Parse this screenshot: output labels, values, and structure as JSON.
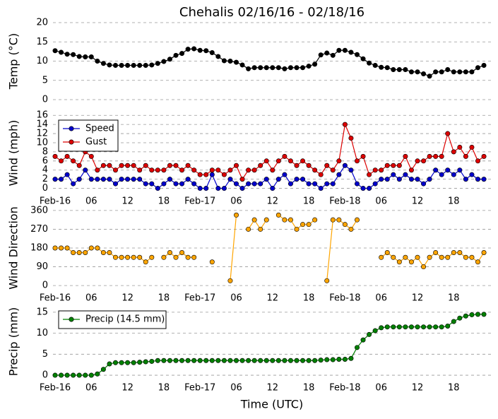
{
  "chart_data": [
    {
      "type": "line",
      "title": "Chehalis 02/16/16 - 02/18/16",
      "y_label": "Temp (°C)",
      "ylim": [
        0,
        20
      ],
      "yticks": [
        0,
        5,
        10,
        15,
        20
      ],
      "grid": true,
      "series": [
        {
          "color": "#000000",
          "values": [
            12.7,
            12.3,
            11.8,
            11.7,
            11.2,
            11.1,
            11.1,
            10.0,
            9.4,
            9.0,
            8.9,
            8.9,
            8.9,
            8.9,
            8.9,
            8.9,
            9.0,
            9.4,
            9.9,
            10.5,
            11.5,
            12.0,
            13.1,
            13.2,
            12.8,
            12.7,
            12.2,
            11.2,
            10.1,
            10.0,
            9.7,
            9.0,
            8.0,
            8.3,
            8.3,
            8.3,
            8.3,
            8.3,
            8.0,
            8.3,
            8.3,
            8.3,
            8.7,
            9.2,
            11.6,
            12.1,
            11.5,
            12.8,
            12.8,
            12.3,
            11.7,
            10.6,
            9.5,
            8.9,
            8.4,
            8.3,
            7.8,
            7.8,
            7.8,
            7.2,
            7.2,
            6.7,
            6.1,
            7.2,
            7.2,
            7.8,
            7.2,
            7.2,
            7.2,
            7.2,
            8.3,
            8.9
          ]
        }
      ]
    },
    {
      "type": "line",
      "y_label": "Wind (mph)",
      "ylim": [
        -1,
        16.5
      ],
      "yticks": [
        0,
        2,
        4,
        6,
        8,
        10,
        12,
        14,
        16
      ],
      "grid": true,
      "legend": "upper left",
      "categories": [
        "Feb-16",
        null,
        null,
        null,
        null,
        null,
        "06",
        null,
        null,
        null,
        null,
        null,
        "12",
        null,
        null,
        null,
        null,
        null,
        "18",
        null,
        null,
        null,
        null,
        null,
        "Feb-17",
        null,
        null,
        null,
        null,
        null,
        "06",
        null,
        null,
        null,
        null,
        null,
        "12",
        null,
        null,
        null,
        null,
        null,
        "18",
        null,
        null,
        null,
        null,
        null,
        "Feb-18",
        null,
        null,
        null,
        null,
        null,
        "06",
        null,
        null,
        null,
        null,
        null,
        "12",
        null,
        null,
        null,
        null,
        null,
        "18",
        null,
        null,
        null,
        null,
        null
      ],
      "series": [
        {
          "name": "Speed",
          "color": "#0000cc",
          "values": [
            2,
            2,
            3,
            1,
            2,
            4,
            2,
            2,
            2,
            2,
            1,
            2,
            2,
            2,
            2,
            1,
            1,
            0,
            1,
            2,
            1,
            1,
            2,
            1,
            0,
            0,
            3,
            0,
            0,
            2,
            1,
            0,
            1,
            1,
            1,
            2,
            0,
            2,
            3,
            1,
            2,
            2,
            1,
            1,
            0,
            1,
            1,
            3,
            5,
            4,
            1,
            0,
            0,
            1,
            2,
            2,
            3,
            2,
            3,
            2,
            2,
            1,
            2,
            4,
            3,
            4,
            3,
            4,
            2,
            3,
            2,
            2
          ]
        },
        {
          "name": "Gust",
          "color": "#dd0000",
          "values": [
            7,
            6,
            7,
            6,
            5,
            8,
            7,
            4,
            5,
            5,
            4,
            5,
            5,
            5,
            4,
            5,
            4,
            4,
            4,
            5,
            5,
            4,
            5,
            4,
            3,
            3,
            4,
            4,
            3,
            4,
            5,
            2,
            4,
            4,
            5,
            6,
            4,
            6,
            7,
            6,
            5,
            6,
            5,
            4,
            3,
            5,
            4,
            6,
            14,
            11,
            6,
            7,
            3,
            4,
            4,
            5,
            5,
            5,
            7,
            4,
            6,
            6,
            7,
            7,
            7,
            12,
            8,
            9,
            7,
            9,
            6,
            7
          ]
        }
      ]
    },
    {
      "type": "line",
      "y_label": "Wind Direction",
      "ylim": [
        -20,
        380
      ],
      "yticks": [
        0,
        90,
        180,
        270,
        360
      ],
      "grid": true,
      "categories": [
        "Feb-16",
        null,
        null,
        null,
        null,
        null,
        "06",
        null,
        null,
        null,
        null,
        null,
        "12",
        null,
        null,
        null,
        null,
        null,
        "18",
        null,
        null,
        null,
        null,
        null,
        "Feb-17",
        null,
        null,
        null,
        null,
        null,
        "06",
        null,
        null,
        null,
        null,
        null,
        "12",
        null,
        null,
        null,
        null,
        null,
        "18",
        null,
        null,
        null,
        null,
        null,
        "Feb-18",
        null,
        null,
        null,
        null,
        null,
        "06",
        null,
        null,
        null,
        null,
        null,
        "12",
        null,
        null,
        null,
        null,
        null,
        "18",
        null,
        null,
        null,
        null,
        null
      ],
      "series": [
        {
          "color": "#ffa500",
          "values": [
            180,
            180,
            180,
            158,
            158,
            158,
            180,
            180,
            158,
            158,
            135,
            135,
            135,
            135,
            135,
            113,
            135,
            null,
            135,
            158,
            135,
            158,
            135,
            135,
            null,
            null,
            113,
            null,
            null,
            23,
            338,
            null,
            270,
            315,
            270,
            315,
            null,
            338,
            315,
            315,
            270,
            293,
            293,
            315,
            null,
            23,
            315,
            315,
            293,
            270,
            315,
            null,
            null,
            null,
            135,
            158,
            135,
            113,
            135,
            113,
            135,
            90,
            135,
            158,
            135,
            135,
            158,
            158,
            135,
            135,
            113,
            158
          ]
        }
      ]
    },
    {
      "type": "line",
      "y_label": "Precip (mm)",
      "x_label": "Time (UTC)",
      "ylim": [
        -1,
        17
      ],
      "yticks": [
        0,
        5,
        10,
        15
      ],
      "grid": true,
      "legend": "upper left",
      "categories": [
        "Feb-16",
        null,
        null,
        null,
        null,
        null,
        "06",
        null,
        null,
        null,
        null,
        null,
        "12",
        null,
        null,
        null,
        null,
        null,
        "18",
        null,
        null,
        null,
        null,
        null,
        "Feb-17",
        null,
        null,
        null,
        null,
        null,
        "06",
        null,
        null,
        null,
        null,
        null,
        "12",
        null,
        null,
        null,
        null,
        null,
        "18",
        null,
        null,
        null,
        null,
        null,
        "Feb-18",
        null,
        null,
        null,
        null,
        null,
        "06",
        null,
        null,
        null,
        null,
        null,
        "12",
        null,
        null,
        null,
        null,
        null,
        "18",
        null,
        null,
        null,
        null,
        null
      ],
      "series": [
        {
          "name": "Precip (14.5 mm)",
          "color": "#008000",
          "values": [
            0,
            0,
            0,
            0,
            0,
            0,
            0,
            0.3,
            1.4,
            2.7,
            3.0,
            3.0,
            3.0,
            3.0,
            3.1,
            3.2,
            3.3,
            3.5,
            3.5,
            3.5,
            3.5,
            3.5,
            3.5,
            3.5,
            3.5,
            3.5,
            3.5,
            3.5,
            3.5,
            3.5,
            3.5,
            3.5,
            3.5,
            3.5,
            3.5,
            3.5,
            3.5,
            3.5,
            3.5,
            3.5,
            3.5,
            3.5,
            3.5,
            3.5,
            3.6,
            3.7,
            3.7,
            3.8,
            3.8,
            4.0,
            6.6,
            8.4,
            9.7,
            10.6,
            11.3,
            11.5,
            11.5,
            11.5,
            11.5,
            11.5,
            11.5,
            11.5,
            11.5,
            11.5,
            11.5,
            11.7,
            12.8,
            13.6,
            14.1,
            14.4,
            14.5,
            14.5
          ]
        }
      ]
    }
  ]
}
